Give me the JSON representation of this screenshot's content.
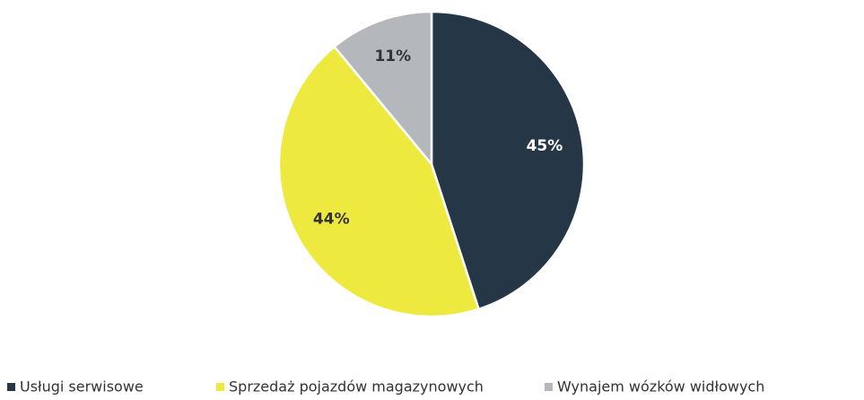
{
  "chart_data": {
    "type": "pie",
    "categories": [
      "Usługi serwisowe",
      "Sprzedaż pojazdów magazynowych",
      "Wynajem wózków widłowych"
    ],
    "values": [
      45,
      44,
      11
    ],
    "value_labels": [
      "45%",
      "44%",
      "11%"
    ],
    "colors": [
      "#253746",
      "#eee93f",
      "#b4b7bc"
    ],
    "legend": "bottom"
  }
}
